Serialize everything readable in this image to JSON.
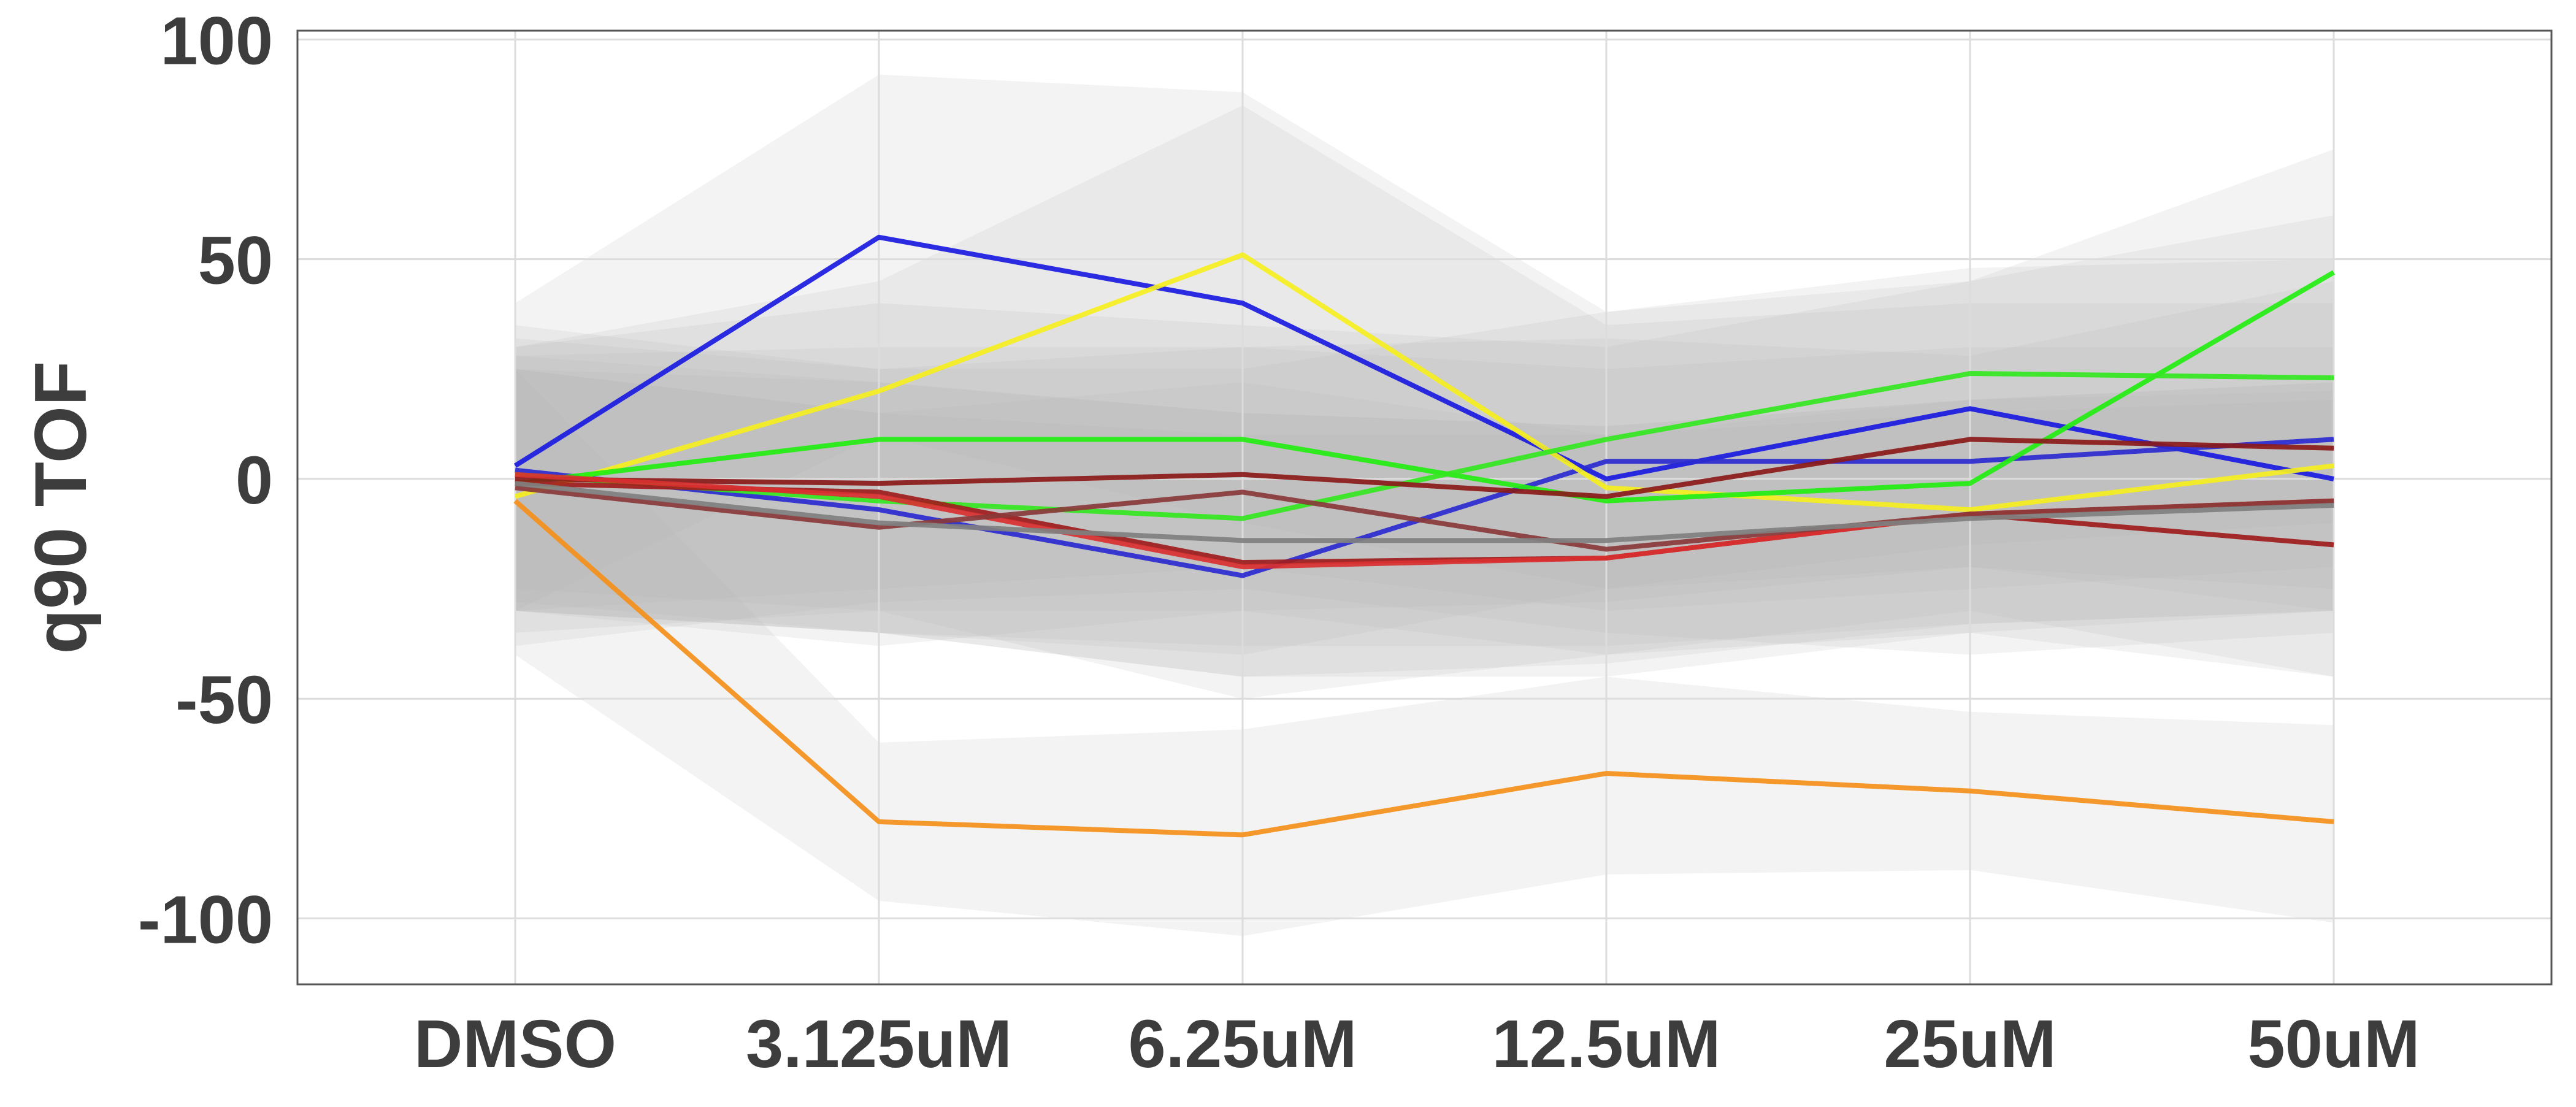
{
  "chart_data": {
    "type": "line",
    "title": "",
    "xlabel": "",
    "ylabel": "q90 TOF",
    "categories": [
      "DMSO",
      "3.125uM",
      "6.25uM",
      "12.5uM",
      "25uM",
      "50uM"
    ],
    "ylim": [
      -115,
      102
    ],
    "yticks": [
      100,
      50,
      0,
      -50,
      -100
    ],
    "ytick_labels": [
      "100",
      "50",
      "0",
      "-50",
      "-100"
    ],
    "grid": true,
    "legend": "none",
    "series": [
      {
        "color": "#1a1adf",
        "values": [
          3,
          55,
          40,
          0,
          16,
          0
        ],
        "band_low": [
          -30,
          10,
          -10,
          -25,
          -20,
          -30
        ],
        "band_high": [
          40,
          92,
          88,
          38,
          45,
          75
        ]
      },
      {
        "color": "#2b2bd0",
        "values": [
          2,
          -7,
          -22,
          4,
          4,
          9
        ],
        "band_low": [
          -35,
          -30,
          -50,
          -40,
          -30,
          -45
        ],
        "band_high": [
          35,
          25,
          30,
          32,
          28,
          45
        ]
      },
      {
        "color": "#f5ef1f",
        "values": [
          -4,
          20,
          51,
          -2,
          -7,
          3
        ],
        "band_low": [
          -38,
          -28,
          -25,
          -35,
          -40,
          -35
        ],
        "band_high": [
          30,
          45,
          85,
          35,
          40,
          40
        ]
      },
      {
        "color": "#22ee10",
        "values": [
          -1,
          9,
          9,
          -5,
          -1,
          47
        ],
        "band_low": [
          -30,
          -25,
          -20,
          -30,
          -25,
          -20
        ],
        "band_high": [
          30,
          40,
          35,
          30,
          45,
          60
        ]
      },
      {
        "color": "#33e820",
        "values": [
          1,
          -5,
          -9,
          9,
          24,
          23
        ],
        "band_low": [
          -30,
          -35,
          -40,
          -25,
          -15,
          -10
        ],
        "band_high": [
          32,
          25,
          25,
          38,
          48,
          50
        ]
      },
      {
        "color": "#8b1a1a",
        "values": [
          0,
          -1,
          1,
          -4,
          9,
          7
        ],
        "band_low": [
          -25,
          -30,
          -30,
          -28,
          -20,
          -25
        ],
        "band_high": [
          28,
          30,
          30,
          25,
          30,
          30
        ]
      },
      {
        "color": "#a01c1c",
        "values": [
          -1,
          -3,
          -19,
          -18,
          -8,
          -15
        ],
        "band_low": [
          -30,
          -35,
          -45,
          -45,
          -35,
          -45
        ],
        "band_high": [
          25,
          22,
          15,
          12,
          18,
          20
        ]
      },
      {
        "color": "#d93030",
        "values": [
          1,
          -4,
          -20,
          -18,
          -8,
          -5
        ],
        "band_low": [
          -28,
          -35,
          -45,
          -42,
          -33,
          -30
        ],
        "band_high": [
          28,
          22,
          15,
          12,
          18,
          22
        ]
      },
      {
        "color": "#8a3a3a",
        "values": [
          -2,
          -11,
          -3,
          -16,
          -8,
          -5
        ],
        "band_low": [
          -30,
          -38,
          -30,
          -40,
          -35,
          -30
        ],
        "band_high": [
          25,
          15,
          22,
          10,
          18,
          22
        ]
      },
      {
        "color": "#808080",
        "values": [
          -1,
          -10,
          -14,
          -14,
          -9,
          -6
        ],
        "band_low": [
          -30,
          -35,
          -38,
          -38,
          -33,
          -30
        ],
        "band_high": [
          25,
          15,
          10,
          10,
          15,
          18
        ]
      },
      {
        "color": "#f5901a",
        "values": [
          -5,
          -78,
          -81,
          -67,
          -71,
          -78
        ],
        "band_low": [
          -40,
          -96,
          -104,
          -90,
          -89,
          -101
        ],
        "band_high": [
          25,
          -60,
          -57,
          -45,
          -53,
          -56
        ]
      }
    ]
  }
}
